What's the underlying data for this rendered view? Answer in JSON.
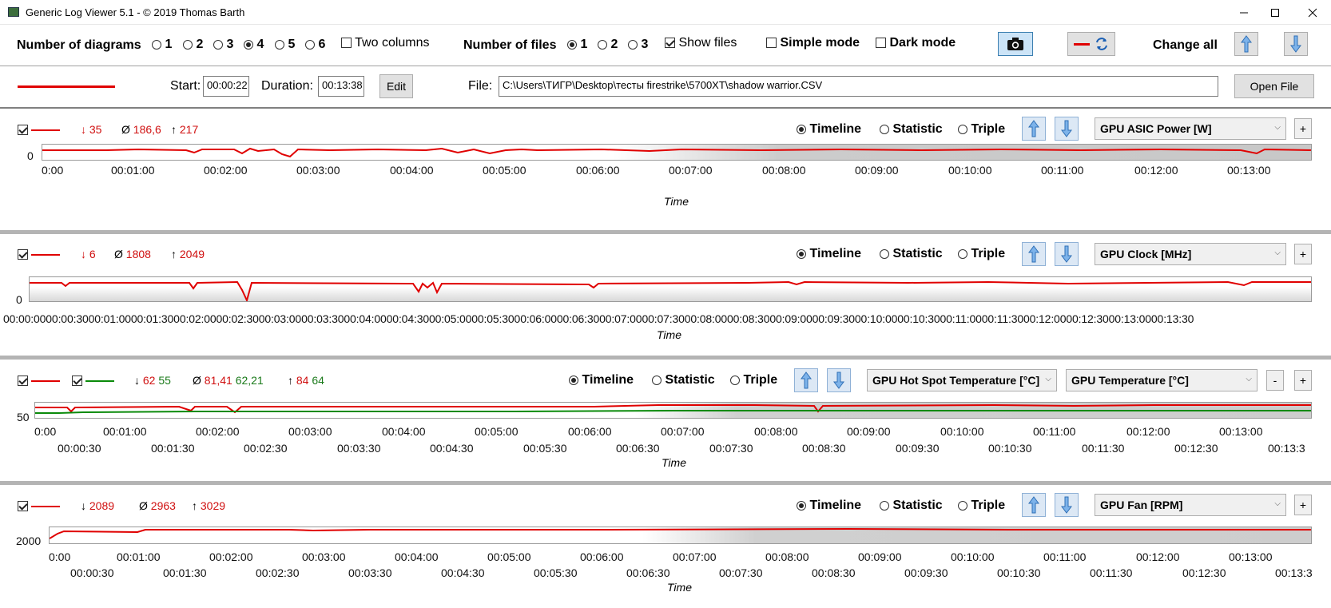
{
  "window": {
    "title": "Generic Log Viewer 5.1 - © 2019 Thomas Barth"
  },
  "toolbar": {
    "num_diagrams_label": "Number of diagrams",
    "diagram_options": [
      "1",
      "2",
      "3",
      "4",
      "5",
      "6"
    ],
    "diagram_selected": "4",
    "two_columns_label": "Two columns",
    "num_files_label": "Number of files",
    "file_options": [
      "1",
      "2",
      "3"
    ],
    "file_selected": "1",
    "show_files_label": "Show files",
    "simple_mode_label": "Simple mode",
    "dark_mode_label": "Dark mode",
    "change_all_label": "Change all"
  },
  "file_row": {
    "start_label": "Start:",
    "start_value": "00:00:22",
    "duration_label": "Duration:",
    "duration_value": "00:13:38",
    "edit_label": "Edit",
    "file_label": "File:",
    "file_path": "C:\\Users\\ТИГР\\Desktop\\тесты firestrike\\5700XT\\shadow warrior.CSV",
    "open_file_label": "Open File"
  },
  "view_modes": {
    "timeline": "Timeline",
    "statistic": "Statistic",
    "triple": "Triple"
  },
  "panels": [
    {
      "stats": {
        "min": "35",
        "avg": "186,6",
        "max": "217"
      },
      "sensor": "GPU ASIC Power [W]",
      "y_label": "0",
      "ticks": [
        "0:00",
        "00:01:00",
        "00:02:00",
        "00:03:00",
        "00:04:00",
        "00:05:00",
        "00:06:00",
        "00:07:00",
        "00:08:00",
        "00:09:00",
        "00:10:00",
        "00:11:00",
        "00:12:00",
        "00:13:00"
      ],
      "axis": "Time"
    },
    {
      "stats": {
        "min": "6",
        "avg": "1808",
        "max": "2049"
      },
      "sensor": "GPU Clock [MHz]",
      "y_label": "0",
      "ticks_text": "00:00:0000:00:3000:01:0000:01:3000:02:0000:02:3000:03:0000:03:3000:04:0000:04:3000:05:0000:05:3000:06:0000:06:3000:07:0000:07:3000:08:0000:08:3000:09:0000:09:3000:10:0000:10:3000:11:0000:11:3000:12:0000:12:3000:13:0000:13:30",
      "axis": "Time"
    },
    {
      "stats": {
        "min": "62",
        "min2": "55",
        "avg": "81,41",
        "avg2": "62,21",
        "max": "84",
        "max2": "64"
      },
      "sensor": "GPU Hot Spot Temperature [°C]",
      "sensor2": "GPU Temperature [°C]",
      "minus_label": "-",
      "y_label": "50",
      "ticks": [
        "0:00",
        "00:01:00",
        "00:02:00",
        "00:03:00",
        "00:04:00",
        "00:05:00",
        "00:06:00",
        "00:07:00",
        "00:08:00",
        "00:09:00",
        "00:10:00",
        "00:11:00",
        "00:12:00",
        "00:13:00"
      ],
      "ticks2": [
        "00:00:30",
        "00:01:30",
        "00:02:30",
        "00:03:30",
        "00:04:30",
        "00:05:30",
        "00:06:30",
        "00:07:30",
        "00:08:30",
        "00:09:30",
        "00:10:30",
        "00:11:30",
        "00:12:30",
        "00:13:3"
      ],
      "axis": "Time"
    },
    {
      "stats": {
        "min": "2089",
        "avg": "2963",
        "max": "3029"
      },
      "sensor": "GPU Fan [RPM]",
      "y_label": "2000",
      "ticks": [
        "0:00",
        "00:01:00",
        "00:02:00",
        "00:03:00",
        "00:04:00",
        "00:05:00",
        "00:06:00",
        "00:07:00",
        "00:08:00",
        "00:09:00",
        "00:10:00",
        "00:11:00",
        "00:12:00",
        "00:13:00"
      ],
      "ticks2": [
        "00:00:30",
        "00:01:30",
        "00:02:30",
        "00:03:30",
        "00:04:30",
        "00:05:30",
        "00:06:30",
        "00:07:30",
        "00:08:30",
        "00:09:30",
        "00:10:30",
        "00:11:30",
        "00:12:30",
        "00:13:3"
      ],
      "axis": "Time"
    }
  ],
  "symbols": {
    "min": "↓",
    "avg": "Ø",
    "max": "↑"
  },
  "colors": {
    "series1": "#e00000",
    "series2": "#0a8a0a",
    "accent": "#3c7fb1"
  }
}
